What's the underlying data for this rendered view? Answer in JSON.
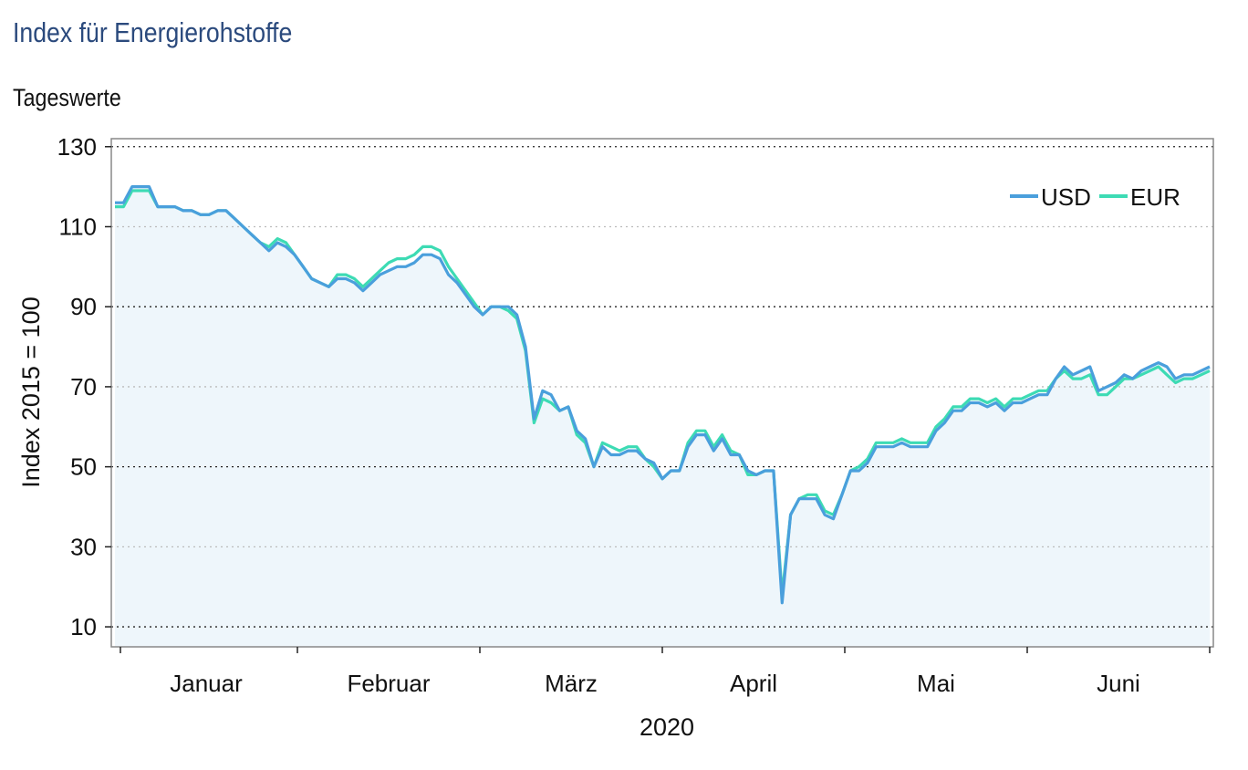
{
  "header": {
    "title": "Index für Energierohstoffe",
    "subtitle": "Tageswerte"
  },
  "chart_data": {
    "type": "line",
    "title": "Index für Energierohstoffe",
    "subtitle": "Tageswerte",
    "ylabel": "Index 2015 = 100",
    "xlabel": "2020",
    "ylim": [
      5,
      132
    ],
    "yticks": [
      10,
      30,
      50,
      70,
      90,
      110,
      130
    ],
    "month_labels": [
      "Januar",
      "Februar",
      "März",
      "April",
      "Mai",
      "Juni"
    ],
    "grid": "horizontal dotted",
    "legend_position": "top-right",
    "colors": {
      "USD": "#4a9fdc",
      "EUR": "#3ddbb4",
      "area": "#eef6fb"
    },
    "series": [
      {
        "name": "USD",
        "values": [
          116,
          116,
          120,
          120,
          120,
          115,
          115,
          115,
          114,
          114,
          113,
          113,
          114,
          114,
          112,
          110,
          108,
          106,
          104,
          106,
          105,
          103,
          100,
          97,
          96,
          95,
          97,
          97,
          96,
          94,
          96,
          98,
          99,
          100,
          100,
          101,
          103,
          103,
          102,
          98,
          96,
          93,
          90,
          88,
          90,
          90,
          90,
          88,
          80,
          62,
          69,
          68,
          64,
          65,
          59,
          57,
          50,
          55,
          53,
          53,
          54,
          54,
          52,
          51,
          47,
          49,
          49,
          55,
          58,
          58,
          54,
          57,
          53,
          53,
          49,
          48,
          49,
          49,
          16,
          38,
          42,
          42,
          42,
          38,
          37,
          43,
          49,
          49,
          51,
          55,
          55,
          55,
          56,
          55,
          55,
          55,
          59,
          61,
          64,
          64,
          66,
          66,
          65,
          66,
          64,
          66,
          66,
          67,
          68,
          68,
          72,
          75,
          73,
          74,
          75,
          69,
          70,
          71,
          73,
          72,
          74,
          75,
          76,
          75,
          72,
          73,
          73,
          74,
          75
        ],
        "values_2": []
      },
      {
        "name": "EUR",
        "values": [
          115,
          115,
          119,
          119,
          119,
          115,
          115,
          115,
          114,
          114,
          113,
          113,
          114,
          114,
          112,
          110,
          108,
          106,
          105,
          107,
          106,
          103,
          100,
          97,
          96,
          95,
          98,
          98,
          97,
          95,
          97,
          99,
          101,
          102,
          102,
          103,
          105,
          105,
          104,
          100,
          97,
          94,
          91,
          88,
          90,
          90,
          89,
          87,
          79,
          61,
          67,
          66,
          64,
          65,
          58,
          56,
          50,
          56,
          55,
          54,
          55,
          55,
          52,
          50,
          47,
          49,
          49,
          56,
          59,
          59,
          55,
          58,
          54,
          53,
          48,
          48,
          49,
          49,
          18,
          38,
          42,
          43,
          43,
          39,
          38,
          43,
          49,
          50,
          52,
          56,
          56,
          56,
          57,
          56,
          56,
          56,
          60,
          62,
          65,
          65,
          67,
          67,
          66,
          67,
          65,
          67,
          67,
          68,
          69,
          69,
          72,
          74,
          72,
          72,
          73,
          68,
          68,
          70,
          72,
          72,
          73,
          74,
          75,
          73,
          71,
          72,
          72,
          73,
          74
        ],
        "values_2": []
      }
    ]
  }
}
